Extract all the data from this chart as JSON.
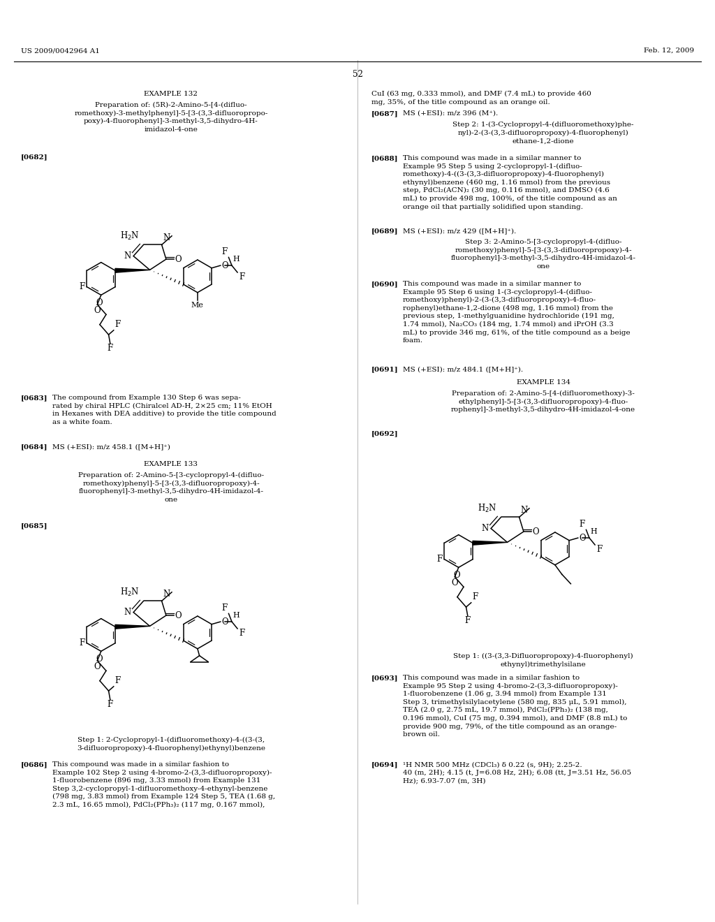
{
  "background_color": "#ffffff",
  "header_left": "US 2009/0042964 A1",
  "header_right": "Feb. 12, 2009",
  "page_number": "52"
}
